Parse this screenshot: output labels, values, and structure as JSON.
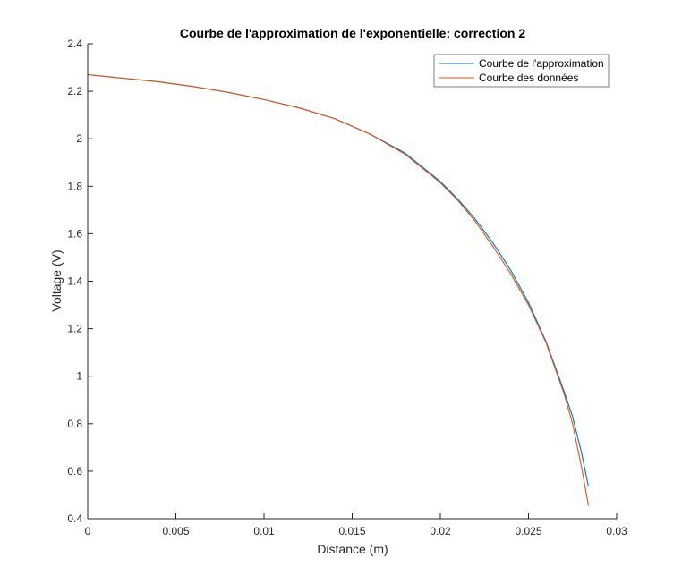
{
  "chart_data": {
    "type": "line",
    "title": "Courbe de l'approximation de l'exponentielle: correction 2",
    "xlabel": "Distance (m)",
    "ylabel": "Voltage (V)",
    "xlim": [
      0,
      0.03
    ],
    "ylim": [
      0.4,
      2.4
    ],
    "x_ticks": [
      0,
      0.005,
      0.01,
      0.015,
      0.02,
      0.025,
      0.03
    ],
    "x_tick_labels": [
      "0",
      "0.005",
      "0.01",
      "0.015",
      "0.02",
      "0.025",
      "0.03"
    ],
    "y_ticks": [
      0.4,
      0.6,
      0.8,
      1.0,
      1.2,
      1.4,
      1.6,
      1.8,
      2.0,
      2.2,
      2.4
    ],
    "y_tick_labels": [
      "0.4",
      "0.6",
      "0.8",
      "1",
      "1.2",
      "1.4",
      "1.6",
      "1.8",
      "2",
      "2.2",
      "2.4"
    ],
    "grid": false,
    "legend_position": "top-right",
    "series": [
      {
        "name": "Courbe de l'approximation",
        "color": "#0072BD",
        "x": [
          0,
          0.002,
          0.004,
          0.006,
          0.008,
          0.01,
          0.012,
          0.014,
          0.016,
          0.018,
          0.02,
          0.021,
          0.022,
          0.023,
          0.024,
          0.025,
          0.026,
          0.027,
          0.0275,
          0.028,
          0.0284
        ],
        "y": [
          2.27,
          2.255,
          2.24,
          2.22,
          2.195,
          2.165,
          2.13,
          2.085,
          2.02,
          1.94,
          1.82,
          1.745,
          1.66,
          1.56,
          1.445,
          1.31,
          1.145,
          0.94,
          0.83,
          0.68,
          0.535
        ]
      },
      {
        "name": "Courbe des données",
        "color": "#D95319",
        "x": [
          0,
          0.002,
          0.004,
          0.006,
          0.008,
          0.01,
          0.012,
          0.014,
          0.016,
          0.018,
          0.02,
          0.021,
          0.022,
          0.023,
          0.024,
          0.025,
          0.026,
          0.027,
          0.0275,
          0.028,
          0.0284
        ],
        "y": [
          2.27,
          2.255,
          2.24,
          2.22,
          2.195,
          2.165,
          2.13,
          2.085,
          2.02,
          1.935,
          1.815,
          1.74,
          1.65,
          1.545,
          1.43,
          1.3,
          1.14,
          0.93,
          0.8,
          0.62,
          0.455
        ]
      }
    ]
  }
}
